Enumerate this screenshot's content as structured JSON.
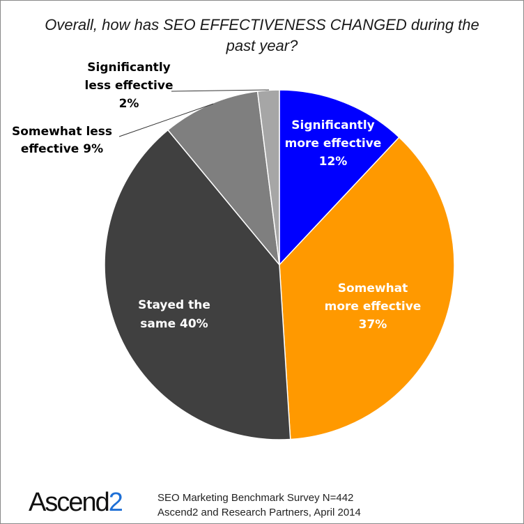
{
  "chart_data": {
    "type": "pie",
    "title": "Overall, how has SEO EFFECTIVENESS CHANGED during the past year?",
    "start_angle_deg": 0,
    "direction": "clockwise",
    "slices": [
      {
        "label_lines": [
          "Significantly",
          "more effective",
          "12%"
        ],
        "value": 12,
        "color": "#0000ff",
        "label_color": "#ffffff"
      },
      {
        "label_lines": [
          "Somewhat",
          "more effective",
          "37%"
        ],
        "value": 37,
        "color": "#ff9900",
        "label_color": "#ffffff"
      },
      {
        "label_lines": [
          "Stayed the",
          "same 40%"
        ],
        "value": 40,
        "color": "#404040",
        "label_color": "#ffffff"
      },
      {
        "label_lines": [
          "Somewhat less",
          "effective 9%"
        ],
        "value": 9,
        "color": "#7f7f7f",
        "label_color": "#000000"
      },
      {
        "label_lines": [
          "Significantly",
          "less effective",
          "2%"
        ],
        "value": 2,
        "color": "#a6a6a6",
        "label_color": "#000000"
      }
    ],
    "slice_border_color": "#ffffff"
  },
  "footer": {
    "logo_text": "Ascend",
    "logo_number": "2",
    "source_line1": "SEO Marketing Benchmark Survey N=442",
    "source_line2": "Ascend2 and Research Partners, April 2014"
  }
}
